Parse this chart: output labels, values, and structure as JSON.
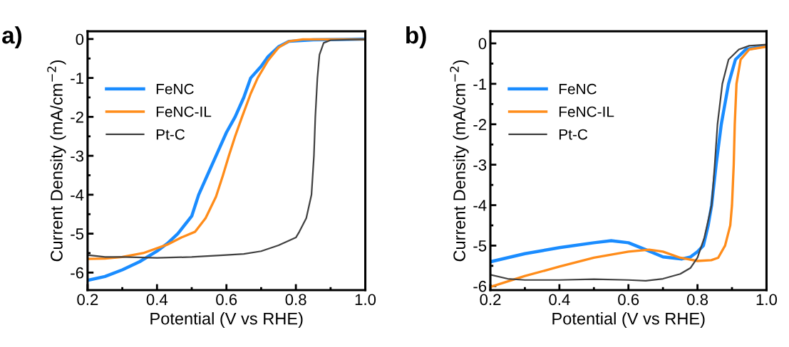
{
  "chart_data": [
    {
      "type": "line",
      "title": "a)",
      "xlabel": "Potential (V vs RHE)",
      "ylabel": "Current Density (mA/cm$^{−2}$)",
      "xlim": [
        0.2,
        1.0
      ],
      "ylim": [
        -6.45,
        0.2
      ],
      "xticks": [
        0.2,
        0.4,
        0.6,
        0.8,
        {
          "value": 1.0,
          "label": "1.0"
        }
      ],
      "yticks": [
        0,
        -1,
        -2,
        -3,
        -4,
        -5,
        -6
      ],
      "legend": "upper left",
      "grid": false,
      "line_style": "solid",
      "marker": "none",
      "series": [
        {
          "name": "FeNC",
          "color": "#1a8cff",
          "x": [
            0.2,
            0.25,
            0.3,
            0.35,
            0.4,
            0.43,
            0.46,
            0.5,
            0.52,
            0.55,
            0.57,
            0.6,
            0.625,
            0.65,
            0.67,
            0.7,
            0.72,
            0.75,
            0.78,
            0.85,
            1.0
          ],
          "values": [
            -6.2,
            -6.1,
            -5.93,
            -5.72,
            -5.45,
            -5.25,
            -5.0,
            -4.55,
            -4.0,
            -3.4,
            -3.0,
            -2.4,
            -2.0,
            -1.5,
            -1.0,
            -0.7,
            -0.45,
            -0.2,
            -0.06,
            -0.02,
            0
          ]
        },
        {
          "name": "FeNC-IL",
          "color": "#ff8c1a",
          "x": [
            0.2,
            0.25,
            0.3,
            0.36,
            0.43,
            0.47,
            0.51,
            0.54,
            0.57,
            0.59,
            0.607,
            0.625,
            0.645,
            0.67,
            0.69,
            0.72,
            0.75,
            0.78,
            0.82,
            1.0
          ],
          "values": [
            -5.65,
            -5.64,
            -5.6,
            -5.5,
            -5.28,
            -5.1,
            -4.95,
            -4.6,
            -4.05,
            -3.5,
            -3.0,
            -2.5,
            -2.0,
            -1.4,
            -1.0,
            -0.55,
            -0.22,
            -0.06,
            -0.01,
            -0.01
          ]
        },
        {
          "name": "Pt-C",
          "color": "#404040",
          "x": [
            0.2,
            0.25,
            0.3,
            0.4,
            0.5,
            0.6,
            0.65,
            0.7,
            0.75,
            0.8,
            0.81,
            0.83,
            0.845,
            0.852,
            0.856,
            0.862,
            0.868,
            0.88,
            0.9,
            1.0
          ],
          "values": [
            -5.55,
            -5.6,
            -5.6,
            -5.62,
            -5.6,
            -5.55,
            -5.52,
            -5.45,
            -5.3,
            -5.1,
            -4.95,
            -4.6,
            -4.0,
            -3.0,
            -2.0,
            -1.0,
            -0.4,
            -0.1,
            -0.03,
            -0.01
          ]
        }
      ]
    },
    {
      "type": "line",
      "title": "b)",
      "xlabel": "Potential (V vs RHE)",
      "ylabel": "Current Density (mA/cm$^{−2}$)",
      "xlim": [
        0.2,
        1.0
      ],
      "ylim": [
        -6.1,
        0.3
      ],
      "xticks": [
        0.2,
        0.4,
        0.6,
        0.8,
        {
          "value": 1.0,
          "label": "1.0"
        }
      ],
      "yticks": [
        0,
        -1,
        -2,
        -3,
        -4,
        -5,
        -6
      ],
      "legend": "upper left",
      "grid": false,
      "line_style": "solid",
      "marker": "none",
      "series": [
        {
          "name": "FeNC",
          "color": "#1a8cff",
          "x": [
            0.2,
            0.3,
            0.4,
            0.5,
            0.55,
            0.6,
            0.65,
            0.7,
            0.755,
            0.78,
            0.8,
            0.817,
            0.831,
            0.841,
            0.854,
            0.869,
            0.89,
            0.91,
            0.94,
            1.0
          ],
          "values": [
            -5.4,
            -5.2,
            -5.05,
            -4.93,
            -4.88,
            -4.93,
            -5.1,
            -5.28,
            -5.33,
            -5.28,
            -5.15,
            -5.0,
            -4.5,
            -4.0,
            -3.0,
            -2.0,
            -1.0,
            -0.4,
            -0.15,
            -0.06
          ]
        },
        {
          "name": "FeNC-IL",
          "color": "#ff8c1a",
          "x": [
            0.2,
            0.3,
            0.4,
            0.5,
            0.6,
            0.66,
            0.7,
            0.75,
            0.8,
            0.84,
            0.86,
            0.88,
            0.895,
            0.9,
            0.905,
            0.908,
            0.913,
            0.925,
            0.95,
            1.0
          ],
          "values": [
            -6.02,
            -5.75,
            -5.52,
            -5.3,
            -5.15,
            -5.1,
            -5.15,
            -5.3,
            -5.38,
            -5.36,
            -5.3,
            -5.0,
            -4.5,
            -4.0,
            -3.0,
            -2.0,
            -1.0,
            -0.4,
            -0.15,
            -0.08
          ]
        },
        {
          "name": "Pt-C",
          "color": "#404040",
          "x": [
            0.2,
            0.25,
            0.3,
            0.4,
            0.5,
            0.6,
            0.65,
            0.7,
            0.75,
            0.78,
            0.8,
            0.82,
            0.841,
            0.85,
            0.858,
            0.872,
            0.89,
            0.92,
            0.95,
            1.0
          ],
          "values": [
            -5.72,
            -5.82,
            -5.85,
            -5.85,
            -5.83,
            -5.85,
            -5.87,
            -5.82,
            -5.7,
            -5.55,
            -5.3,
            -4.8,
            -4.0,
            -3.0,
            -2.0,
            -1.0,
            -0.4,
            -0.15,
            -0.06,
            -0.03
          ]
        }
      ]
    }
  ]
}
